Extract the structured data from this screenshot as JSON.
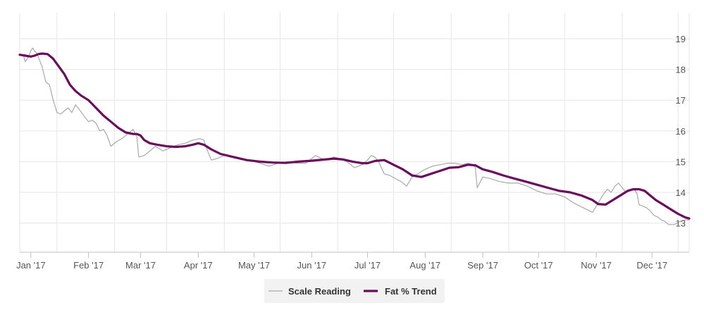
{
  "chart_data": {
    "type": "line",
    "title": "",
    "xlabel": "",
    "ylabel": "",
    "x_start": "2016-12-26",
    "x_end": "2017-12-21",
    "ylim": [
      12.05,
      19.85
    ],
    "y_ticks": [
      "13",
      "14",
      "15",
      "16",
      "17",
      "18",
      "19"
    ],
    "x_ticks": [
      {
        "label": "Jan '17",
        "date": "2017-01-01"
      },
      {
        "label": "Feb '17",
        "date": "2017-02-01"
      },
      {
        "label": "Mar '17",
        "date": "2017-03-01"
      },
      {
        "label": "Apr '17",
        "date": "2017-04-01"
      },
      {
        "label": "May '17",
        "date": "2017-05-01"
      },
      {
        "label": "Jun '17",
        "date": "2017-06-01"
      },
      {
        "label": "Jul '17",
        "date": "2017-07-01"
      },
      {
        "label": "Aug '17",
        "date": "2017-08-01"
      },
      {
        "label": "Sep '17",
        "date": "2017-09-01"
      },
      {
        "label": "Oct '17",
        "date": "2017-10-01"
      },
      {
        "label": "Nov '17",
        "date": "2017-11-01"
      },
      {
        "label": "Dec '17",
        "date": "2017-12-01"
      }
    ],
    "grid": true,
    "legend_position": "bottom-center",
    "series": [
      {
        "name": "Scale Reading",
        "color": "#a8a8a8",
        "x": [
          "2016-12-26",
          "2016-12-28",
          "2016-12-29",
          "2016-12-31",
          "2017-01-01",
          "2017-01-02",
          "2017-01-03",
          "2017-01-04",
          "2017-01-05",
          "2017-01-07",
          "2017-01-09",
          "2017-01-11",
          "2017-01-13",
          "2017-01-15",
          "2017-01-17",
          "2017-01-19",
          "2017-01-21",
          "2017-01-23",
          "2017-01-25",
          "2017-01-27",
          "2017-01-30",
          "2017-02-01",
          "2017-02-03",
          "2017-02-05",
          "2017-02-07",
          "2017-02-09",
          "2017-02-11",
          "2017-02-13",
          "2017-02-16",
          "2017-02-19",
          "2017-02-22",
          "2017-02-25",
          "2017-02-27",
          "2017-02-28",
          "2017-03-03",
          "2017-03-06",
          "2017-03-09",
          "2017-03-13",
          "2017-03-17",
          "2017-03-21",
          "2017-03-25",
          "2017-03-29",
          "2017-04-02",
          "2017-04-04",
          "2017-04-06",
          "2017-04-08",
          "2017-04-11",
          "2017-04-15",
          "2017-04-19",
          "2017-04-24",
          "2017-04-29",
          "2017-05-04",
          "2017-05-09",
          "2017-05-14",
          "2017-05-19",
          "2017-05-24",
          "2017-05-29",
          "2017-06-03",
          "2017-06-08",
          "2017-06-13",
          "2017-06-16",
          "2017-06-20",
          "2017-06-24",
          "2017-06-28",
          "2017-07-01",
          "2017-07-03",
          "2017-07-05",
          "2017-07-07",
          "2017-07-10",
          "2017-07-13",
          "2017-07-16",
          "2017-07-19",
          "2017-07-22",
          "2017-07-25",
          "2017-07-28",
          "2017-08-01",
          "2017-08-05",
          "2017-08-09",
          "2017-08-13",
          "2017-08-17",
          "2017-08-21",
          "2017-08-24",
          "2017-08-27",
          "2017-08-28",
          "2017-08-29",
          "2017-09-01",
          "2017-09-05",
          "2017-09-10",
          "2017-09-15",
          "2017-09-20",
          "2017-09-25",
          "2017-09-30",
          "2017-10-05",
          "2017-10-10",
          "2017-10-15",
          "2017-10-20",
          "2017-10-25",
          "2017-10-30",
          "2017-11-01",
          "2017-11-03",
          "2017-11-05",
          "2017-11-07",
          "2017-11-09",
          "2017-11-11",
          "2017-11-13",
          "2017-11-15",
          "2017-11-17",
          "2017-11-19",
          "2017-11-21",
          "2017-11-22",
          "2017-11-23",
          "2017-11-24",
          "2017-11-26",
          "2017-11-28",
          "2017-11-30",
          "2017-12-02",
          "2017-12-04",
          "2017-12-06",
          "2017-12-08",
          "2017-12-10",
          "2017-12-13",
          "2017-12-16",
          "2017-12-19",
          "2017-12-21"
        ],
        "y": [
          18.48,
          18.45,
          18.25,
          18.45,
          18.62,
          18.7,
          18.6,
          18.55,
          18.4,
          18.1,
          17.6,
          17.5,
          17.0,
          16.6,
          16.55,
          16.65,
          16.75,
          16.6,
          16.85,
          16.7,
          16.45,
          16.3,
          16.35,
          16.25,
          16.0,
          16.05,
          15.85,
          15.5,
          15.65,
          15.75,
          15.9,
          16.05,
          15.8,
          15.15,
          15.2,
          15.35,
          15.5,
          15.35,
          15.45,
          15.55,
          15.6,
          15.7,
          15.75,
          15.7,
          15.35,
          15.05,
          15.1,
          15.2,
          15.15,
          15.1,
          15.05,
          14.95,
          14.85,
          14.95,
          15.0,
          14.95,
          14.95,
          15.2,
          15.05,
          15.15,
          15.1,
          15.0,
          14.8,
          14.9,
          15.05,
          15.2,
          15.15,
          15.0,
          14.6,
          14.55,
          14.45,
          14.35,
          14.2,
          14.5,
          14.6,
          14.75,
          14.85,
          14.9,
          14.95,
          14.95,
          14.9,
          14.95,
          14.9,
          14.8,
          14.15,
          14.5,
          14.45,
          14.35,
          14.3,
          14.3,
          14.2,
          14.05,
          13.95,
          13.95,
          13.85,
          13.65,
          13.5,
          13.35,
          13.55,
          13.75,
          13.95,
          14.1,
          14.0,
          14.2,
          14.3,
          14.15,
          14.0,
          14.05,
          14.1,
          14.05,
          13.95,
          13.6,
          13.55,
          13.5,
          13.4,
          13.25,
          13.2,
          13.1,
          13.05,
          12.95,
          12.95,
          13.05,
          13.1,
          13.1
        ]
      },
      {
        "name": "Fat % Trend",
        "color": "#6a0d5c",
        "x": [
          "2016-12-26",
          "2016-12-29",
          "2017-01-01",
          "2017-01-03",
          "2017-01-05",
          "2017-01-07",
          "2017-01-10",
          "2017-01-13",
          "2017-01-16",
          "2017-01-19",
          "2017-01-22",
          "2017-01-25",
          "2017-01-28",
          "2017-02-01",
          "2017-02-05",
          "2017-02-09",
          "2017-02-13",
          "2017-02-17",
          "2017-02-21",
          "2017-02-25",
          "2017-02-27",
          "2017-03-01",
          "2017-03-03",
          "2017-03-06",
          "2017-03-10",
          "2017-03-15",
          "2017-03-20",
          "2017-03-25",
          "2017-03-29",
          "2017-04-01",
          "2017-04-04",
          "2017-04-08",
          "2017-04-13",
          "2017-04-20",
          "2017-04-27",
          "2017-05-04",
          "2017-05-11",
          "2017-05-18",
          "2017-05-25",
          "2017-06-01",
          "2017-06-08",
          "2017-06-13",
          "2017-06-18",
          "2017-06-23",
          "2017-06-28",
          "2017-07-01",
          "2017-07-05",
          "2017-07-10",
          "2017-07-15",
          "2017-07-20",
          "2017-07-25",
          "2017-07-30",
          "2017-08-04",
          "2017-08-09",
          "2017-08-14",
          "2017-08-19",
          "2017-08-24",
          "2017-08-28",
          "2017-09-01",
          "2017-09-06",
          "2017-09-12",
          "2017-09-18",
          "2017-09-24",
          "2017-09-30",
          "2017-10-06",
          "2017-10-12",
          "2017-10-18",
          "2017-10-24",
          "2017-10-30",
          "2017-11-02",
          "2017-11-06",
          "2017-11-10",
          "2017-11-14",
          "2017-11-18",
          "2017-11-21",
          "2017-11-24",
          "2017-11-27",
          "2017-11-30",
          "2017-12-03",
          "2017-12-07",
          "2017-12-11",
          "2017-12-15",
          "2017-12-19",
          "2017-12-21"
        ],
        "y": [
          18.48,
          18.45,
          18.42,
          18.45,
          18.5,
          18.52,
          18.5,
          18.35,
          18.1,
          17.85,
          17.5,
          17.3,
          17.15,
          17.0,
          16.75,
          16.5,
          16.3,
          16.1,
          15.95,
          15.9,
          15.9,
          15.85,
          15.7,
          15.6,
          15.55,
          15.5,
          15.48,
          15.5,
          15.55,
          15.6,
          15.55,
          15.4,
          15.25,
          15.15,
          15.05,
          15.0,
          14.97,
          14.96,
          15.0,
          15.03,
          15.07,
          15.1,
          15.07,
          15.0,
          14.95,
          14.95,
          15.02,
          15.05,
          14.9,
          14.75,
          14.55,
          14.5,
          14.6,
          14.7,
          14.8,
          14.82,
          14.9,
          14.88,
          14.75,
          14.67,
          14.55,
          14.45,
          14.35,
          14.25,
          14.15,
          14.05,
          14.0,
          13.9,
          13.75,
          13.62,
          13.6,
          13.75,
          13.9,
          14.05,
          14.1,
          14.1,
          14.05,
          13.9,
          13.75,
          13.6,
          13.45,
          13.3,
          13.18,
          13.15
        ]
      }
    ]
  }
}
